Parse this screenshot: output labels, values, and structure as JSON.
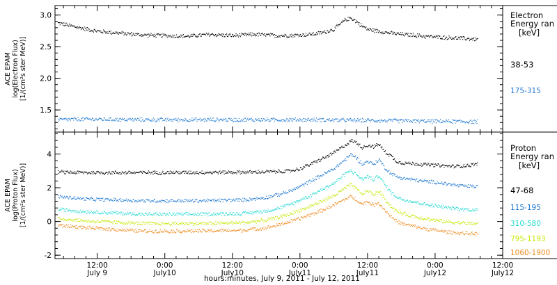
{
  "figure": {
    "xlabel": "hours:minutes, July  9, 2011 - July 12, 2011"
  },
  "colors": {
    "black": "#000000",
    "blue": "#1f78d2",
    "cyan": "#22d8d0",
    "yellow": "#c8e600",
    "orange": "#ee8a1c"
  },
  "chart_data": [
    {
      "type": "scatter",
      "panel": "electron",
      "ylabel_lines": [
        "ACE EPAM",
        "log(Electron Flux)",
        "[1/(cm²s ster MeV)]"
      ],
      "legend_title_lines": [
        "Electron",
        "Energy ran",
        "[keV]"
      ],
      "ylim": [
        1.15,
        3.15
      ],
      "yticks": [
        1.5,
        2.0,
        2.5,
        3.0
      ],
      "ytick_labels": [
        "1.5",
        "2.0",
        "2.5",
        "3.0"
      ],
      "x_unit": "hours since July 9 00:00",
      "xlim": [
        4.5,
        84
      ],
      "series": [
        {
          "name": "38-53",
          "color": "#000000",
          "x": [
            5,
            8,
            12,
            16,
            20,
            24,
            28,
            32,
            36,
            40,
            44,
            48,
            50,
            52,
            54,
            56,
            57,
            58,
            59,
            60,
            62,
            64,
            66,
            68,
            70,
            72,
            74,
            76,
            78,
            79.5
          ],
          "y": [
            2.88,
            2.82,
            2.75,
            2.72,
            2.69,
            2.68,
            2.67,
            2.7,
            2.68,
            2.7,
            2.68,
            2.69,
            2.7,
            2.73,
            2.78,
            2.93,
            2.96,
            2.9,
            2.83,
            2.78,
            2.75,
            2.72,
            2.7,
            2.69,
            2.67,
            2.66,
            2.65,
            2.64,
            2.63,
            2.62
          ]
        },
        {
          "name": "175-315",
          "color": "#1f78d2",
          "x": [
            5,
            10,
            20,
            30,
            40,
            50,
            60,
            70,
            79.5
          ],
          "y": [
            1.35,
            1.36,
            1.35,
            1.35,
            1.35,
            1.35,
            1.34,
            1.33,
            1.32
          ]
        }
      ]
    },
    {
      "type": "scatter",
      "panel": "proton",
      "ylabel_lines": [
        "ACE EPAM",
        "log(Proton Flux)",
        "[1/(cm²s ster MeV)]"
      ],
      "legend_title_lines": [
        "Proton",
        "Energy ran",
        "[keV]"
      ],
      "ylim": [
        -2.2,
        5.3
      ],
      "yticks": [
        -2,
        0,
        2,
        4
      ],
      "ytick_labels": [
        "-2",
        "0",
        "2",
        "4"
      ],
      "x_unit": "hours since July 9 00:00",
      "xlim": [
        4.5,
        84
      ],
      "xticks": [
        12,
        24,
        36,
        48,
        60,
        72,
        84
      ],
      "xtick_labels_top": [
        "12:00",
        "0:00",
        "12:00",
        "0:00",
        "12:00",
        "0:00",
        "12:00"
      ],
      "xtick_labels_bottom": [
        "July 9",
        "July10",
        "July10",
        "July11",
        "July11",
        "July12",
        "July12"
      ],
      "series": [
        {
          "name": "47-68",
          "color": "#000000",
          "x": [
            5,
            10,
            20,
            30,
            40,
            46,
            48,
            50,
            52,
            54,
            56,
            57,
            58,
            59,
            60,
            61,
            62,
            63,
            64,
            65,
            66,
            68,
            70,
            72,
            74,
            76,
            78,
            79.5
          ],
          "y": [
            2.95,
            2.92,
            2.92,
            2.93,
            2.95,
            3.0,
            3.15,
            3.45,
            3.75,
            4.1,
            4.55,
            4.8,
            4.7,
            4.4,
            4.55,
            4.45,
            4.6,
            4.15,
            3.95,
            3.6,
            3.5,
            3.45,
            3.4,
            3.35,
            3.3,
            3.3,
            3.35,
            3.45
          ]
        },
        {
          "name": "115-195",
          "color": "#1f78d2",
          "x": [
            5,
            10,
            20,
            30,
            38,
            42,
            44,
            46,
            48,
            50,
            52,
            54,
            56,
            57,
            58,
            59,
            60,
            61,
            62,
            63,
            64,
            65,
            66,
            68,
            70,
            72,
            74,
            76,
            78,
            79.5
          ],
          "y": [
            1.5,
            1.35,
            1.25,
            1.25,
            1.3,
            1.45,
            1.6,
            1.8,
            2.1,
            2.45,
            2.8,
            3.15,
            3.7,
            4.0,
            3.8,
            3.4,
            3.6,
            3.4,
            3.7,
            3.2,
            2.9,
            2.7,
            2.6,
            2.5,
            2.4,
            2.35,
            2.25,
            2.15,
            2.1,
            2.1
          ]
        },
        {
          "name": "310-580",
          "color": "#22d8d0",
          "x": [
            5,
            10,
            20,
            30,
            38,
            42,
            44,
            46,
            48,
            50,
            52,
            54,
            56,
            57,
            58,
            59,
            60,
            61,
            62,
            63,
            64,
            65,
            66,
            68,
            70,
            72,
            74,
            76,
            78,
            79.5
          ],
          "y": [
            0.75,
            0.6,
            0.45,
            0.45,
            0.5,
            0.65,
            0.8,
            1.0,
            1.3,
            1.6,
            1.95,
            2.3,
            2.85,
            3.05,
            2.8,
            2.5,
            2.7,
            2.5,
            2.75,
            2.2,
            1.8,
            1.5,
            1.35,
            1.2,
            1.05,
            0.95,
            0.85,
            0.78,
            0.72,
            0.7
          ]
        },
        {
          "name": "795-1193",
          "color": "#c8e600",
          "x": [
            5,
            10,
            20,
            30,
            38,
            42,
            44,
            46,
            48,
            50,
            52,
            54,
            56,
            57,
            58,
            59,
            60,
            61,
            62,
            63,
            64,
            65,
            66,
            68,
            70,
            72,
            74,
            76,
            78,
            79.5
          ],
          "y": [
            0.2,
            0.05,
            -0.1,
            -0.1,
            -0.05,
            0.1,
            0.25,
            0.45,
            0.7,
            0.95,
            1.25,
            1.55,
            2.0,
            2.2,
            1.95,
            1.65,
            1.85,
            1.6,
            1.8,
            1.35,
            0.95,
            0.65,
            0.5,
            0.35,
            0.2,
            0.1,
            0.0,
            -0.05,
            -0.1,
            -0.1
          ]
        },
        {
          "name": "1060-1900",
          "color": "#ee8a1c",
          "x": [
            5,
            10,
            20,
            30,
            38,
            42,
            44,
            46,
            48,
            50,
            52,
            54,
            56,
            57,
            58,
            59,
            60,
            61,
            62,
            63,
            64,
            65,
            66,
            68,
            70,
            72,
            74,
            76,
            78,
            79.5
          ],
          "y": [
            -0.2,
            -0.35,
            -0.55,
            -0.55,
            -0.5,
            -0.35,
            -0.2,
            0.0,
            0.2,
            0.45,
            0.7,
            1.0,
            1.35,
            1.5,
            1.3,
            1.05,
            1.2,
            1.0,
            1.1,
            0.7,
            0.35,
            0.05,
            -0.1,
            -0.25,
            -0.4,
            -0.5,
            -0.6,
            -0.65,
            -0.7,
            -0.7
          ]
        }
      ]
    }
  ]
}
